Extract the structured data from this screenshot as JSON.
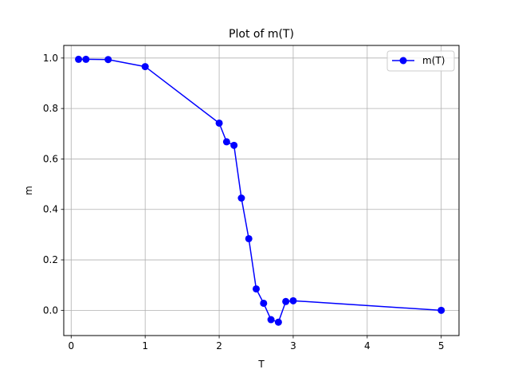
{
  "chart_data": {
    "type": "line",
    "title": "Plot of m(T)",
    "xlabel": "T",
    "ylabel": "m",
    "xlim": [
      -0.1,
      5.24
    ],
    "ylim": [
      -0.1,
      1.05
    ],
    "xticks": [
      0,
      1,
      2,
      3,
      4,
      5
    ],
    "yticks": [
      0.0,
      0.2,
      0.4,
      0.6,
      0.8,
      1.0
    ],
    "xtick_labels": [
      "0",
      "1",
      "2",
      "3",
      "4",
      "5"
    ],
    "ytick_labels": [
      "0.0",
      "0.2",
      "0.4",
      "0.6",
      "0.8",
      "1.0"
    ],
    "grid": true,
    "legend_position": "top-right",
    "series": [
      {
        "name": "m(T)",
        "color": "#0000ff",
        "marker": "circle",
        "x": [
          0.1,
          0.2,
          0.5,
          1.0,
          2.0,
          2.1,
          2.2,
          2.3,
          2.4,
          2.5,
          2.6,
          2.7,
          2.8,
          2.9,
          3.0,
          5.0
        ],
        "y": [
          0.995,
          0.995,
          0.994,
          0.966,
          0.742,
          0.668,
          0.654,
          0.445,
          0.284,
          0.085,
          0.028,
          -0.037,
          -0.047,
          0.035,
          0.038,
          0.0
        ]
      }
    ]
  }
}
